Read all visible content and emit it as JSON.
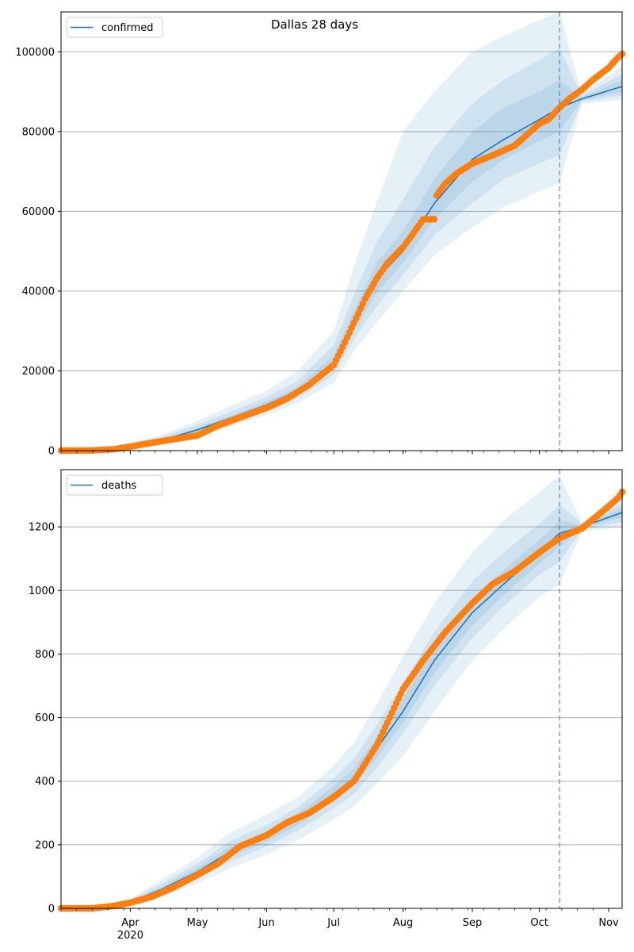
{
  "title": "Dallas 28 days",
  "colors": {
    "model": "#1f77b4",
    "observed": "#ff7f0e",
    "band": "#1f77b4",
    "grid": "#b0b0b0",
    "forecast_line": "#1f77b4"
  },
  "x_axis": {
    "range": [
      "2020-03-01",
      "2020-11-07"
    ],
    "major_ticks": [
      {
        "date": "2020-04-01",
        "label": "Apr",
        "sublabel": "2020"
      },
      {
        "date": "2020-05-01",
        "label": "May"
      },
      {
        "date": "2020-06-01",
        "label": "Jun"
      },
      {
        "date": "2020-07-01",
        "label": "Jul"
      },
      {
        "date": "2020-08-01",
        "label": "Aug"
      },
      {
        "date": "2020-09-01",
        "label": "Sep"
      },
      {
        "date": "2020-10-01",
        "label": "Oct"
      },
      {
        "date": "2020-11-01",
        "label": "Nov"
      }
    ]
  },
  "forecast_start": "2020-10-10",
  "chart_data": [
    {
      "type": "line",
      "legend": "confirmed",
      "legend_loc": "upper-left",
      "grid": "y",
      "ylim": [
        0,
        110000
      ],
      "yticks": [
        0,
        20000,
        40000,
        60000,
        80000,
        100000
      ],
      "ytick_labels": [
        "0",
        "20000",
        "40000",
        "60000",
        "80000",
        "100000"
      ],
      "model": {
        "name": "confirmed",
        "x": [
          "2020-03-01",
          "2020-03-20",
          "2020-04-01",
          "2020-04-15",
          "2020-05-01",
          "2020-05-15",
          "2020-06-01",
          "2020-06-15",
          "2020-07-01",
          "2020-07-10",
          "2020-07-20",
          "2020-08-01",
          "2020-08-15",
          "2020-09-01",
          "2020-09-15",
          "2020-10-01",
          "2020-10-10",
          "2020-10-20",
          "2020-11-07"
        ],
        "y": [
          0,
          150,
          1000,
          2600,
          5200,
          8000,
          11500,
          15000,
          22000,
          32000,
          43000,
          50000,
          62000,
          73000,
          78000,
          83000,
          86000,
          88200,
          91300
        ]
      },
      "bands": [
        {
          "x": [
            "2020-03-01",
            "2020-03-20",
            "2020-04-01",
            "2020-04-15",
            "2020-05-01",
            "2020-05-15",
            "2020-06-01",
            "2020-06-15",
            "2020-07-01",
            "2020-07-10",
            "2020-07-20",
            "2020-08-01",
            "2020-08-15",
            "2020-09-01",
            "2020-09-15",
            "2020-10-01",
            "2020-10-10",
            "2020-10-20",
            "2020-11-07"
          ],
          "low": [
            0,
            50,
            500,
            1600,
            3600,
            6000,
            9000,
            12000,
            17000,
            25000,
            32000,
            40000,
            49000,
            56000,
            61000,
            65000,
            67000,
            87000,
            88000
          ],
          "high": [
            0,
            300,
            1800,
            4000,
            7500,
            11000,
            15000,
            20000,
            30000,
            46000,
            62000,
            80000,
            90000,
            100000,
            104000,
            108000,
            110000,
            89500,
            96500
          ]
        },
        {
          "x": [
            "2020-03-01",
            "2020-03-20",
            "2020-04-01",
            "2020-04-15",
            "2020-05-01",
            "2020-05-15",
            "2020-06-01",
            "2020-06-15",
            "2020-07-01",
            "2020-07-10",
            "2020-07-20",
            "2020-08-01",
            "2020-08-15",
            "2020-09-01",
            "2020-09-15",
            "2020-10-01",
            "2020-10-10",
            "2020-10-20",
            "2020-11-07"
          ],
          "low": [
            0,
            80,
            700,
            2000,
            4200,
            6800,
            10000,
            13200,
            19000,
            28000,
            36000,
            44000,
            54000,
            62000,
            68000,
            72000,
            74000,
            87500,
            89000
          ],
          "high": [
            0,
            220,
            1400,
            3400,
            6500,
            9600,
            13500,
            17500,
            26500,
            39000,
            52000,
            63000,
            76000,
            87000,
            93000,
            98000,
            101000,
            89000,
            94500
          ]
        },
        {
          "x": [
            "2020-03-01",
            "2020-03-20",
            "2020-04-01",
            "2020-04-15",
            "2020-05-01",
            "2020-05-15",
            "2020-06-01",
            "2020-06-15",
            "2020-07-01",
            "2020-07-10",
            "2020-07-20",
            "2020-08-01",
            "2020-08-15",
            "2020-09-01",
            "2020-09-15",
            "2020-10-01",
            "2020-10-10",
            "2020-10-20",
            "2020-11-07"
          ],
          "low": [
            0,
            110,
            850,
            2300,
            4700,
            7400,
            10800,
            14100,
            20500,
            30000,
            39500,
            47000,
            58000,
            67500,
            73000,
            77500,
            80000,
            87800,
            90000
          ],
          "high": [
            0,
            180,
            1150,
            2900,
            5700,
            8600,
            12300,
            16000,
            24000,
            35000,
            47000,
            55000,
            68000,
            80000,
            86000,
            90000,
            93000,
            88600,
            93000
          ]
        }
      ],
      "observed": {
        "name": "observed",
        "x": [
          "2020-03-01",
          "2020-03-15",
          "2020-03-25",
          "2020-04-01",
          "2020-04-10",
          "2020-04-20",
          "2020-05-01",
          "2020-05-10",
          "2020-05-20",
          "2020-06-01",
          "2020-06-10",
          "2020-06-20",
          "2020-07-01",
          "2020-07-05",
          "2020-07-10",
          "2020-07-15",
          "2020-07-20",
          "2020-07-25",
          "2020-08-01",
          "2020-08-05",
          "2020-08-10",
          "2020-08-15",
          "2020-08-16",
          "2020-08-20",
          "2020-08-25",
          "2020-09-01",
          "2020-09-10",
          "2020-09-20",
          "2020-10-01",
          "2020-10-05",
          "2020-10-10",
          "2020-10-15",
          "2020-10-20",
          "2020-10-25",
          "2020-11-01",
          "2020-11-05",
          "2020-11-07"
        ],
        "y": [
          0,
          50,
          350,
          1000,
          1900,
          2800,
          3800,
          6200,
          8300,
          10700,
          13000,
          16500,
          21500,
          26000,
          32000,
          38000,
          43000,
          47000,
          51000,
          54000,
          58000,
          58000,
          64000,
          67000,
          69500,
          72000,
          74000,
          76500,
          82000,
          83000,
          86000,
          88500,
          90500,
          93000,
          96000,
          98500,
          99500
        ]
      }
    },
    {
      "type": "line",
      "legend": "deaths",
      "legend_loc": "upper-left",
      "grid": "y",
      "ylim": [
        0,
        1380
      ],
      "yticks": [
        0,
        200,
        400,
        600,
        800,
        1000,
        1200
      ],
      "ytick_labels": [
        "0",
        "200",
        "400",
        "600",
        "800",
        "1000",
        "1200"
      ],
      "model": {
        "name": "deaths",
        "x": [
          "2020-03-01",
          "2020-03-20",
          "2020-04-01",
          "2020-04-15",
          "2020-05-01",
          "2020-05-15",
          "2020-06-01",
          "2020-06-15",
          "2020-07-01",
          "2020-07-10",
          "2020-07-20",
          "2020-08-01",
          "2020-08-15",
          "2020-09-01",
          "2020-09-15",
          "2020-10-01",
          "2020-10-10",
          "2020-10-20",
          "2020-11-07"
        ],
        "y": [
          0,
          3,
          20,
          60,
          115,
          175,
          225,
          280,
          360,
          410,
          500,
          620,
          780,
          930,
          1020,
          1120,
          1180,
          1200,
          1245
        ]
      },
      "bands": [
        {
          "x": [
            "2020-03-01",
            "2020-03-20",
            "2020-04-01",
            "2020-04-15",
            "2020-05-01",
            "2020-05-15",
            "2020-06-01",
            "2020-06-15",
            "2020-07-01",
            "2020-07-10",
            "2020-07-20",
            "2020-08-01",
            "2020-08-15",
            "2020-09-01",
            "2020-09-15",
            "2020-10-01",
            "2020-10-10",
            "2020-10-20",
            "2020-11-07"
          ],
          "low": [
            0,
            1,
            10,
            35,
            80,
            125,
            170,
            215,
            280,
            320,
            390,
            480,
            620,
            780,
            880,
            980,
            1020,
            1185,
            1200
          ],
          "high": [
            0,
            5,
            30,
            90,
            160,
            235,
            295,
            350,
            450,
            520,
            640,
            790,
            960,
            1120,
            1220,
            1310,
            1360,
            1215,
            1295
          ]
        },
        {
          "x": [
            "2020-03-01",
            "2020-03-20",
            "2020-04-01",
            "2020-04-15",
            "2020-05-01",
            "2020-05-15",
            "2020-06-01",
            "2020-06-15",
            "2020-07-01",
            "2020-07-10",
            "2020-07-20",
            "2020-08-01",
            "2020-08-15",
            "2020-09-01",
            "2020-09-15",
            "2020-10-01",
            "2020-10-10",
            "2020-10-20",
            "2020-11-07"
          ],
          "low": [
            0,
            2,
            14,
            45,
            95,
            145,
            195,
            245,
            315,
            360,
            440,
            550,
            700,
            850,
            950,
            1050,
            1090,
            1190,
            1215
          ],
          "high": [
            0,
            4,
            26,
            78,
            140,
            210,
            262,
            318,
            410,
            470,
            575,
            710,
            870,
            1030,
            1120,
            1210,
            1270,
            1210,
            1275
          ]
        },
        {
          "x": [
            "2020-03-01",
            "2020-03-20",
            "2020-04-01",
            "2020-04-15",
            "2020-05-01",
            "2020-05-15",
            "2020-06-01",
            "2020-06-15",
            "2020-07-01",
            "2020-07-10",
            "2020-07-20",
            "2020-08-01",
            "2020-08-15",
            "2020-09-01",
            "2020-09-15",
            "2020-10-01",
            "2020-10-10",
            "2020-10-20",
            "2020-11-07"
          ],
          "low": [
            0,
            2,
            17,
            52,
            105,
            160,
            210,
            262,
            338,
            388,
            470,
            585,
            740,
            890,
            985,
            1085,
            1135,
            1195,
            1230
          ],
          "high": [
            0,
            3,
            23,
            68,
            128,
            192,
            242,
            300,
            385,
            440,
            535,
            660,
            825,
            975,
            1065,
            1160,
            1220,
            1205,
            1260
          ]
        }
      ],
      "observed": {
        "name": "observed",
        "x": [
          "2020-03-01",
          "2020-03-15",
          "2020-03-25",
          "2020-04-01",
          "2020-04-10",
          "2020-04-20",
          "2020-05-01",
          "2020-05-10",
          "2020-05-20",
          "2020-06-01",
          "2020-06-10",
          "2020-06-20",
          "2020-07-01",
          "2020-07-10",
          "2020-07-20",
          "2020-08-01",
          "2020-08-10",
          "2020-08-20",
          "2020-09-01",
          "2020-09-10",
          "2020-09-20",
          "2020-10-01",
          "2020-10-10",
          "2020-10-20",
          "2020-11-01",
          "2020-11-05",
          "2020-11-07"
        ],
        "y": [
          0,
          0,
          8,
          18,
          35,
          65,
          105,
          140,
          195,
          230,
          270,
          300,
          350,
          400,
          510,
          690,
          780,
          870,
          960,
          1020,
          1060,
          1120,
          1165,
          1195,
          1265,
          1290,
          1310
        ]
      }
    }
  ]
}
